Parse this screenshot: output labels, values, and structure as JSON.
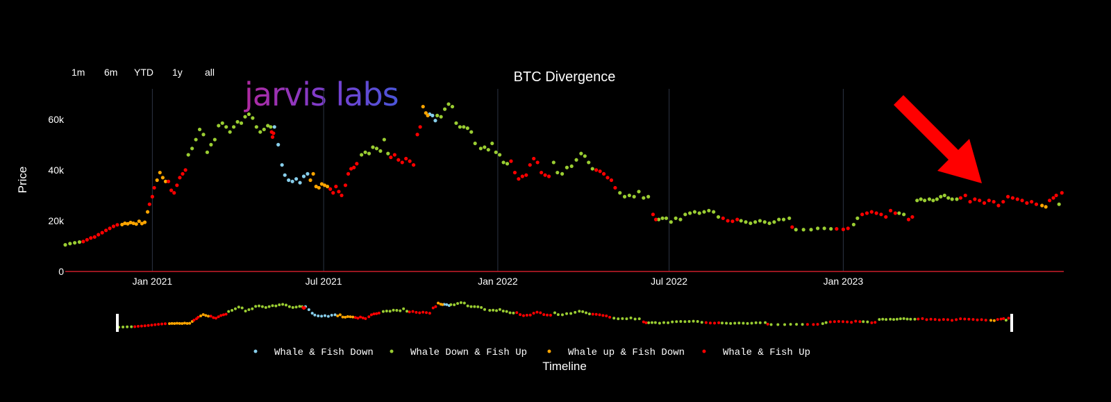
{
  "chart_data": {
    "type": "scatter",
    "title": "BTC Divergence",
    "ylabel": "Price",
    "xlabel": "Timeline",
    "watermark": "jarvis labs",
    "range_buttons": [
      "1m",
      "6m",
      "YTD",
      "1y",
      "all"
    ],
    "xlim": [
      "2020-10-01",
      "2023-08-22"
    ],
    "ylim": [
      0,
      72000
    ],
    "y_ticks": [
      0,
      20000,
      40000,
      60000
    ],
    "y_tick_labels": [
      "0",
      "20k",
      "40k",
      "60k"
    ],
    "x_ticks": [
      "2021-01-01",
      "2021-07-01",
      "2022-01-01",
      "2022-07-01",
      "2023-01-01"
    ],
    "x_tick_labels": [
      "Jan 2021",
      "Jul 2021",
      "Jan 2022",
      "Jul 2022",
      "Jan 2023"
    ],
    "grid": "vertical",
    "legend_position": "bottom",
    "series": [
      {
        "name": "Whale & Fish Down",
        "color": "#87ceeb",
        "x": [
          "2021-05-10",
          "2021-05-14",
          "2021-05-18",
          "2021-05-21",
          "2021-05-25",
          "2021-05-29",
          "2021-06-02",
          "2021-06-06",
          "2021-06-10",
          "2021-06-14",
          "2021-10-21",
          "2021-10-24",
          "2021-10-27"
        ],
        "y": [
          57000,
          50000,
          42000,
          38000,
          36000,
          35500,
          36500,
          35000,
          37500,
          38500,
          62000,
          61500,
          59500
        ]
      },
      {
        "name": "Whale Down & Fish Up",
        "color": "#9acd32",
        "x": [
          "2020-10-01",
          "2020-10-06",
          "2020-10-11",
          "2020-10-16",
          "2021-02-08",
          "2021-02-12",
          "2021-02-16",
          "2021-02-20",
          "2021-02-24",
          "2021-02-28",
          "2021-03-04",
          "2021-03-08",
          "2021-03-12",
          "2021-03-16",
          "2021-03-20",
          "2021-03-24",
          "2021-03-28",
          "2021-04-01",
          "2021-04-05",
          "2021-04-09",
          "2021-04-13",
          "2021-04-17",
          "2021-04-21",
          "2021-04-25",
          "2021-04-29",
          "2021-05-03",
          "2021-05-06",
          "2021-08-10",
          "2021-08-14",
          "2021-08-18",
          "2021-08-22",
          "2021-08-26",
          "2021-08-30",
          "2021-09-03",
          "2021-09-07",
          "2021-10-29",
          "2021-11-02",
          "2021-11-06",
          "2021-11-10",
          "2021-11-14",
          "2021-11-18",
          "2021-11-22",
          "2021-11-26",
          "2021-11-30",
          "2021-12-04",
          "2021-12-08",
          "2021-12-14",
          "2021-12-18",
          "2021-12-22",
          "2021-12-26",
          "2021-12-30",
          "2022-01-03",
          "2022-01-07",
          "2022-01-11",
          "2022-03-01",
          "2022-03-05",
          "2022-03-10",
          "2022-03-15",
          "2022-03-20",
          "2022-03-25",
          "2022-03-30",
          "2022-04-03",
          "2022-04-07",
          "2022-04-11",
          "2022-05-10",
          "2022-05-15",
          "2022-05-20",
          "2022-05-25",
          "2022-05-30",
          "2022-06-04",
          "2022-06-09",
          "2022-06-20",
          "2022-06-24",
          "2022-06-28",
          "2022-07-03",
          "2022-07-08",
          "2022-07-13",
          "2022-07-18",
          "2022-07-23",
          "2022-07-28",
          "2022-08-02",
          "2022-08-07",
          "2022-08-12",
          "2022-08-17",
          "2022-08-22",
          "2022-09-15",
          "2022-09-20",
          "2022-09-25",
          "2022-09-30",
          "2022-10-05",
          "2022-10-10",
          "2022-10-15",
          "2022-10-20",
          "2022-10-25",
          "2022-10-30",
          "2022-11-05",
          "2022-11-12",
          "2022-11-20",
          "2022-11-28",
          "2022-12-05",
          "2022-12-12",
          "2022-12-19",
          "2023-01-12",
          "2023-01-16",
          "2023-03-01",
          "2023-03-06",
          "2023-03-20",
          "2023-03-24",
          "2023-03-28",
          "2023-04-02",
          "2023-04-06",
          "2023-04-10",
          "2023-04-14",
          "2023-04-18",
          "2023-04-22",
          "2023-04-26",
          "2023-05-01",
          "2023-08-17"
        ],
        "y": [
          10500,
          11000,
          11300,
          11600,
          46000,
          48500,
          52000,
          56000,
          54000,
          47000,
          50000,
          52000,
          57500,
          58500,
          57000,
          55000,
          57000,
          59000,
          58500,
          61000,
          62000,
          60500,
          57000,
          55000,
          56000,
          57500,
          57000,
          46000,
          47000,
          46500,
          49000,
          48500,
          47500,
          52000,
          46500,
          61500,
          61000,
          64000,
          66000,
          65000,
          58500,
          57000,
          57000,
          56500,
          55000,
          50500,
          48500,
          49000,
          48000,
          50500,
          47000,
          46000,
          43000,
          42500,
          43000,
          39000,
          38500,
          41000,
          41500,
          44000,
          46500,
          45500,
          43000,
          40500,
          31000,
          29500,
          30000,
          29500,
          31500,
          29000,
          29500,
          20500,
          21000,
          21000,
          19500,
          21000,
          20500,
          22500,
          23000,
          23500,
          23000,
          23500,
          24000,
          23500,
          21500,
          20000,
          19500,
          19000,
          19500,
          20000,
          19500,
          19000,
          19500,
          20500,
          20500,
          21000,
          16500,
          16500,
          16500,
          17000,
          17000,
          16800,
          18500,
          21000,
          23000,
          22500,
          28000,
          28500,
          28000,
          28500,
          28000,
          28500,
          29500,
          30000,
          29000,
          28500,
          28500,
          26500
        ]
      },
      {
        "name": "Whale up & Fish Down",
        "color": "#ffa500",
        "x": [
          "2020-11-30",
          "2020-12-03",
          "2020-12-06",
          "2020-12-09",
          "2020-12-12",
          "2020-12-15",
          "2020-12-18",
          "2020-12-21",
          "2020-12-24",
          "2020-12-27",
          "2021-01-06",
          "2021-01-09",
          "2021-01-12",
          "2021-01-15",
          "2021-06-17",
          "2021-06-20",
          "2021-06-23",
          "2021-06-26",
          "2021-06-29",
          "2021-07-02",
          "2021-07-05",
          "2021-10-14",
          "2021-10-17",
          "2021-10-19",
          "2023-07-30",
          "2023-08-03"
        ],
        "y": [
          18500,
          19000,
          18800,
          19300,
          19000,
          18700,
          19800,
          18900,
          19400,
          23500,
          36000,
          39000,
          37000,
          35500,
          36000,
          38500,
          33500,
          33000,
          34500,
          34000,
          33500,
          65000,
          62500,
          61500,
          26000,
          25500
        ]
      },
      {
        "name": "Whale & Fish Up",
        "color": "#ff0000",
        "x": [
          "2020-10-20",
          "2020-10-24",
          "2020-10-28",
          "2020-11-01",
          "2020-11-05",
          "2020-11-09",
          "2020-11-13",
          "2020-11-17",
          "2020-11-21",
          "2020-11-25",
          "2020-12-29",
          "2021-01-01",
          "2021-01-03",
          "2021-01-18",
          "2021-01-21",
          "2021-01-24",
          "2021-01-27",
          "2021-01-30",
          "2021-02-02",
          "2021-02-05",
          "2021-05-07",
          "2021-05-08",
          "2021-05-09",
          "2021-07-08",
          "2021-07-11",
          "2021-07-14",
          "2021-07-17",
          "2021-07-20",
          "2021-07-24",
          "2021-07-27",
          "2021-07-30",
          "2021-08-02",
          "2021-08-05",
          "2021-09-10",
          "2021-09-14",
          "2021-09-18",
          "2021-09-22",
          "2021-09-26",
          "2021-09-30",
          "2021-10-04",
          "2021-10-08",
          "2021-10-11",
          "2022-01-15",
          "2022-01-19",
          "2022-01-23",
          "2022-01-27",
          "2022-01-31",
          "2022-02-04",
          "2022-02-08",
          "2022-02-12",
          "2022-02-16",
          "2022-02-20",
          "2022-02-24",
          "2022-04-15",
          "2022-04-19",
          "2022-04-23",
          "2022-04-27",
          "2022-05-01",
          "2022-05-05",
          "2022-06-14",
          "2022-06-17",
          "2022-08-27",
          "2022-09-01",
          "2022-09-06",
          "2022-09-11",
          "2022-11-08",
          "2022-12-25",
          "2023-01-01",
          "2023-01-06",
          "2023-01-21",
          "2023-01-26",
          "2023-01-31",
          "2023-02-05",
          "2023-02-10",
          "2023-02-15",
          "2023-02-20",
          "2023-02-25",
          "2023-03-11",
          "2023-03-15",
          "2023-05-05",
          "2023-05-10",
          "2023-05-15",
          "2023-05-20",
          "2023-05-25",
          "2023-05-30",
          "2023-06-04",
          "2023-06-09",
          "2023-06-14",
          "2023-06-19",
          "2023-06-24",
          "2023-06-29",
          "2023-07-04",
          "2023-07-09",
          "2023-07-14",
          "2023-07-19",
          "2023-07-24",
          "2023-08-07",
          "2023-08-11",
          "2023-08-14",
          "2023-08-20"
        ],
        "y": [
          11800,
          12500,
          13200,
          13600,
          14500,
          15300,
          16200,
          17000,
          17800,
          18400,
          26500,
          29500,
          33000,
          35500,
          32000,
          31000,
          34000,
          37000,
          38500,
          40000,
          55000,
          53000,
          54500,
          32500,
          31000,
          33500,
          31500,
          30000,
          34000,
          38500,
          40500,
          41000,
          42500,
          45000,
          46000,
          44000,
          43000,
          44500,
          43500,
          42000,
          54000,
          57000,
          43500,
          39000,
          36500,
          37500,
          38000,
          42000,
          44500,
          43000,
          39000,
          38000,
          37500,
          40000,
          39500,
          38500,
          37000,
          36000,
          33000,
          22500,
          20500,
          21000,
          20000,
          19800,
          20500,
          17500,
          16800,
          16600,
          17000,
          22500,
          23000,
          23500,
          23000,
          22500,
          21500,
          24000,
          23000,
          20500,
          21500,
          29000,
          30000,
          27500,
          28500,
          28000,
          27000,
          28000,
          27500,
          26000,
          27500,
          29500,
          29000,
          28500,
          28000,
          27000,
          27500,
          26500,
          28000,
          29000,
          30000,
          31000
        ]
      }
    ]
  },
  "annotation": {
    "arrow_color": "#ff0000"
  }
}
